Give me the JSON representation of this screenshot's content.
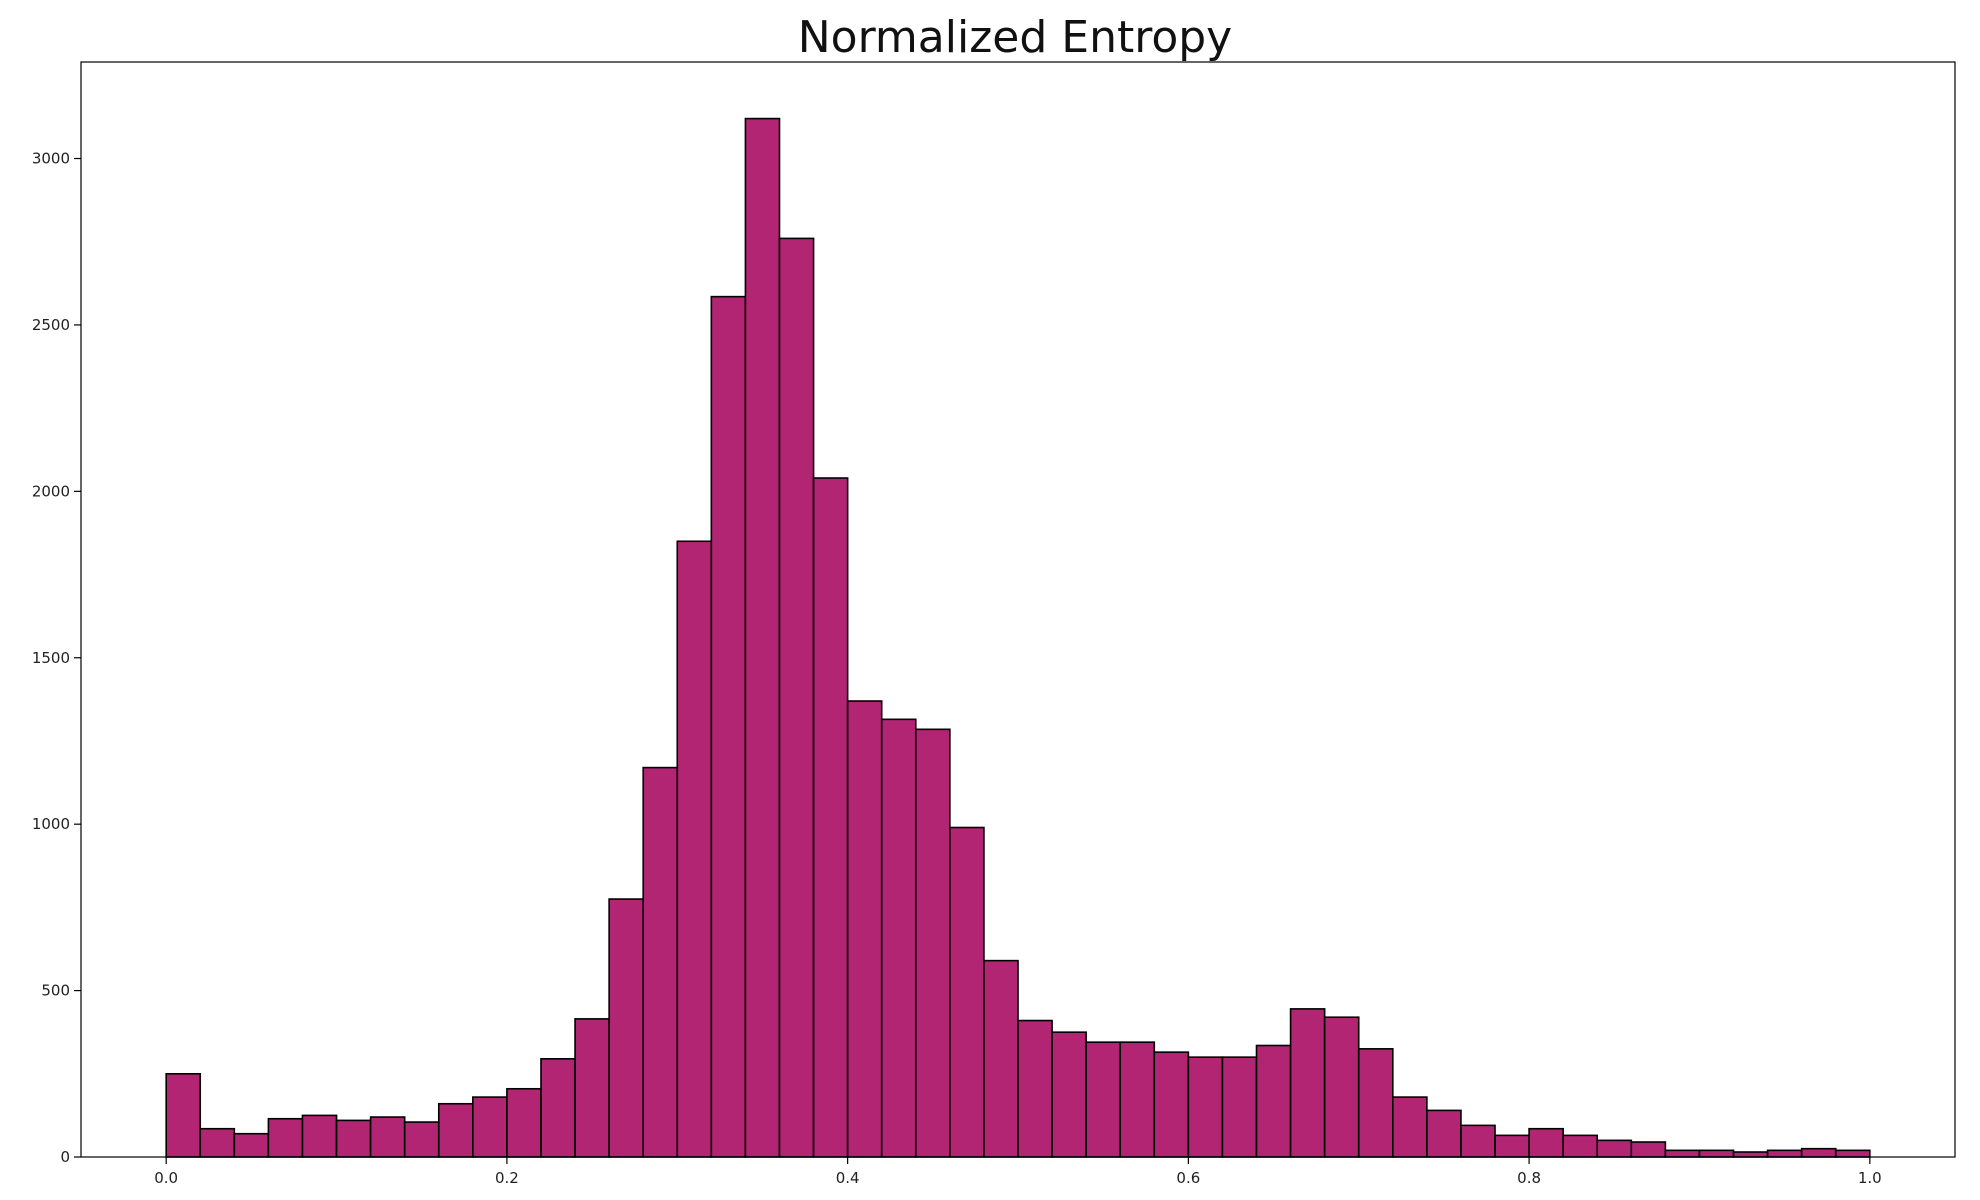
{
  "chart_data": {
    "type": "bar",
    "title": "Normalized Entropy",
    "xlabel": "",
    "ylabel": "",
    "bin_width": 0.02,
    "bin_starts": [
      0.0,
      0.02,
      0.04,
      0.06,
      0.08,
      0.1,
      0.12,
      0.14,
      0.16,
      0.18,
      0.2,
      0.22,
      0.24,
      0.26,
      0.28,
      0.3,
      0.32,
      0.34,
      0.36,
      0.38,
      0.4,
      0.42,
      0.44,
      0.46,
      0.48,
      0.5,
      0.52,
      0.54,
      0.56,
      0.58,
      0.6,
      0.62,
      0.64,
      0.66,
      0.68,
      0.7,
      0.72,
      0.74,
      0.76,
      0.78,
      0.8,
      0.82,
      0.84,
      0.86,
      0.88,
      0.9,
      0.92,
      0.94,
      0.96,
      0.98
    ],
    "values": [
      250,
      85,
      70,
      115,
      125,
      110,
      120,
      105,
      160,
      180,
      205,
      295,
      415,
      775,
      1170,
      1850,
      2585,
      3120,
      2760,
      2040,
      1370,
      1315,
      1285,
      990,
      590,
      410,
      375,
      345,
      345,
      315,
      300,
      300,
      335,
      445,
      420,
      325,
      180,
      140,
      95,
      65,
      85,
      65,
      50,
      45,
      20,
      20,
      15,
      20,
      25,
      20
    ],
    "xlim": [
      -0.05,
      1.05
    ],
    "ylim": [
      0,
      3290
    ],
    "x_ticks": [
      0.0,
      0.2,
      0.4,
      0.6,
      0.8,
      1.0
    ],
    "x_tick_labels": [
      "0.0",
      "0.2",
      "0.4",
      "0.6",
      "0.8",
      "1.0"
    ],
    "y_ticks": [
      0,
      500,
      1000,
      1500,
      2000,
      2500,
      3000
    ],
    "y_tick_labels": [
      "0",
      "500",
      "1000",
      "1500",
      "2000",
      "2500",
      "3000"
    ],
    "grid": false,
    "legend": "none",
    "bar_color": "#b22572",
    "edge_color": "#000000"
  }
}
